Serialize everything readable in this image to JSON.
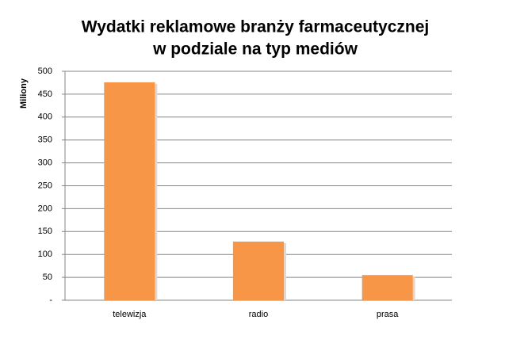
{
  "chart_data": {
    "type": "bar",
    "title": [
      "Wydatki reklamowe branży farmaceutycznej",
      "w podziale na typ mediów"
    ],
    "y_label": "Miliony",
    "categories": [
      "telewizja",
      "radio",
      "prasa"
    ],
    "values": [
      476,
      128,
      55
    ],
    "color": "#f79646",
    "ylim": [
      0,
      500
    ],
    "yticks": [
      {
        "value": 0,
        "label": "-"
      },
      50,
      100,
      150,
      200,
      250,
      300,
      350,
      400,
      450,
      500
    ],
    "grid": true
  }
}
